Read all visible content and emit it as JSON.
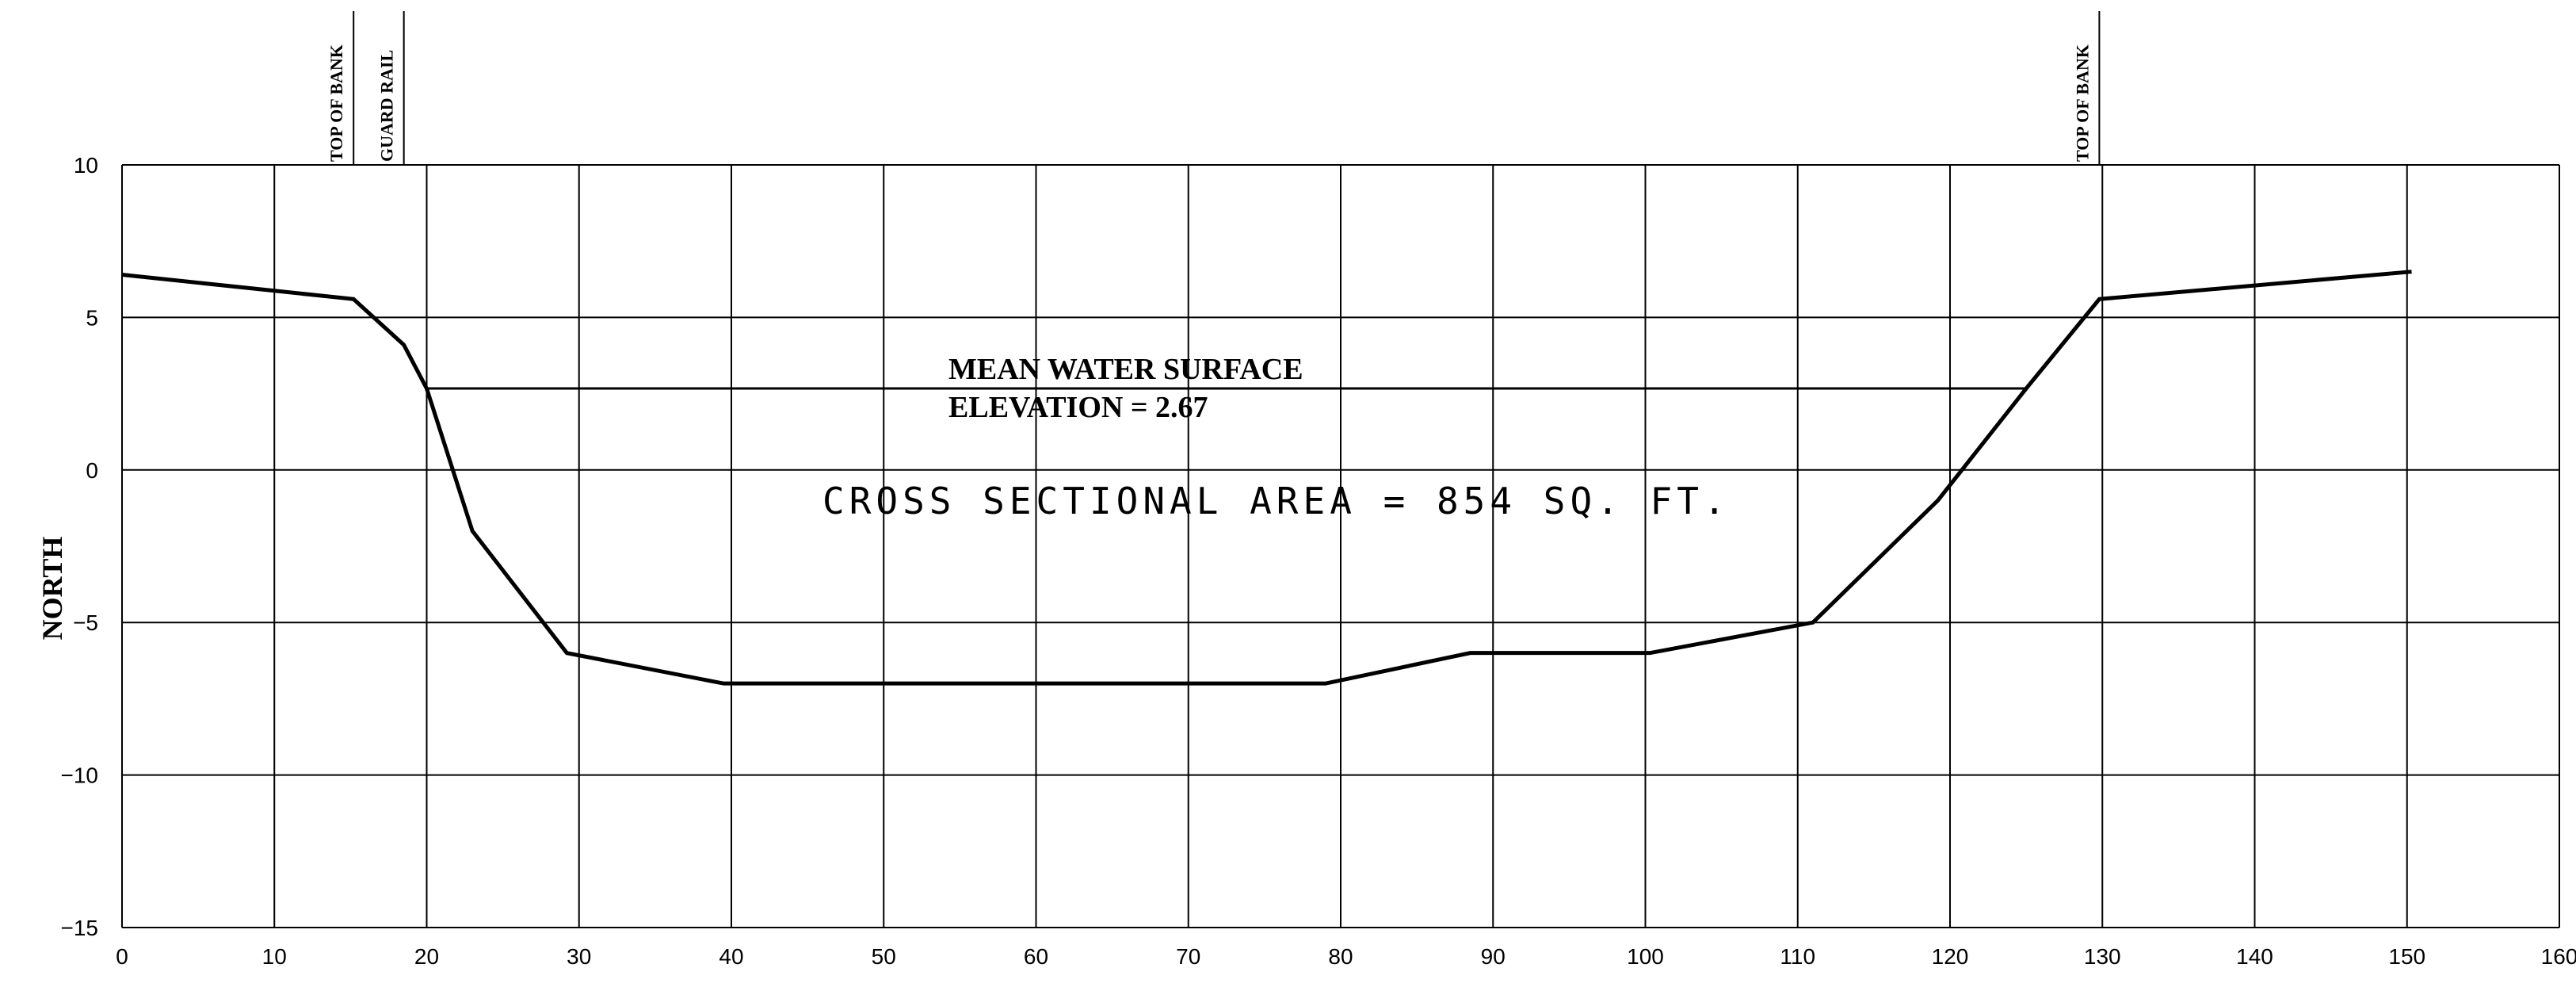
{
  "chart_data": {
    "type": "line",
    "title": "",
    "xlabel": "",
    "ylabel": "NORTH",
    "xlim": [
      0,
      160
    ],
    "ylim": [
      -15,
      10
    ],
    "x_ticks": [
      0,
      10,
      20,
      30,
      40,
      50,
      60,
      70,
      80,
      90,
      100,
      110,
      120,
      130,
      140,
      150,
      160
    ],
    "y_ticks": [
      10,
      5,
      0,
      -5,
      -10,
      -15
    ],
    "grid": true,
    "series": [
      {
        "points": [
          [
            0,
            6.4
          ],
          [
            15.2,
            5.6
          ],
          [
            18.5,
            4.1
          ],
          [
            20,
            2.67
          ],
          [
            23,
            -2
          ],
          [
            29.2,
            -6
          ],
          [
            39.5,
            -7
          ],
          [
            79,
            -7
          ],
          [
            88.5,
            -6
          ],
          [
            100.3,
            -6
          ],
          [
            111,
            -5
          ],
          [
            119.2,
            -1
          ],
          [
            125,
            2.67
          ],
          [
            129.8,
            5.6
          ],
          [
            150.3,
            6.5
          ]
        ]
      }
    ],
    "water_surface": {
      "elevation": 2.67,
      "x_start": 20,
      "x_end": 125,
      "label_line1": "MEAN WATER SURFACE",
      "label_line2": "ELEVATION = 2.67"
    },
    "area_label": "CROSS SECTIONAL AREA = 854 SQ. FT.",
    "markers": [
      {
        "x": 15.2,
        "label": "TOP OF BANK"
      },
      {
        "x": 18.5,
        "label": "GUARD RAIL"
      },
      {
        "x": 129.8,
        "label": "TOP OF BANK"
      }
    ]
  }
}
